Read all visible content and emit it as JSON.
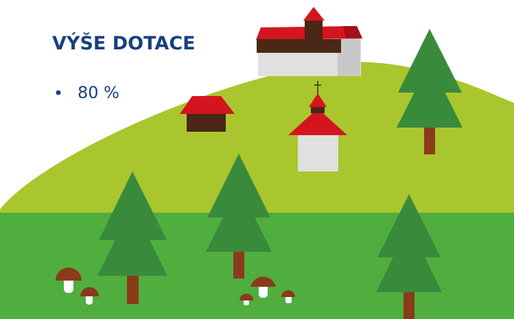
{
  "header": {
    "title": "VÝŠE DOTACE"
  },
  "list": {
    "items": [
      "80 %"
    ]
  }
}
